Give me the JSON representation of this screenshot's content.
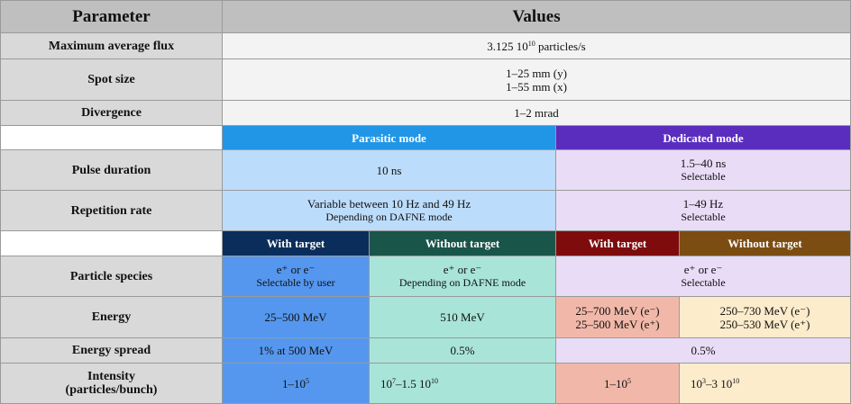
{
  "header": {
    "parameter": "Parameter",
    "values": "Values"
  },
  "flux": {
    "label": "Maximum average flux",
    "value_base": "3.125 10",
    "value_exp": "10",
    "value_unit": " particles/s"
  },
  "spot": {
    "label": "Spot size",
    "y": "1–25 mm (y)",
    "x": "1–55 mm (x)"
  },
  "divergence": {
    "label": "Divergence",
    "value": "1–2 mrad"
  },
  "modes": {
    "parasitic": "Parasitic mode",
    "dedicated": "Dedicated mode"
  },
  "pulse": {
    "label": "Pulse duration",
    "parasitic": "10 ns",
    "dedicated": "1.5–40 ns",
    "dedicated_note": "Selectable"
  },
  "reprate": {
    "label": "Repetition rate",
    "parasitic": "Variable between 10 Hz and 49 Hz",
    "parasitic_note": "Depending on DAFNE mode",
    "dedicated": "1–49 Hz",
    "dedicated_note": "Selectable"
  },
  "sub": {
    "with_target": "With target",
    "without_target": "Without target"
  },
  "species": {
    "label": "Particle species",
    "par_with": "e⁺ or e⁻",
    "par_with_note": "Selectable by user",
    "par_without": "e⁺ or e⁻",
    "par_without_note": "Depending on DAFNE mode",
    "ded": "e⁺ or e⁻",
    "ded_note": "Selectable"
  },
  "energy": {
    "label": "Energy",
    "par_with": "25–500 MeV",
    "par_without": "510 MeV",
    "ded_with_1": "25–700 MeV (e⁻)",
    "ded_with_2": "25–500 MeV (e⁺)",
    "ded_without_1": "250–730 MeV (e⁻)",
    "ded_without_2": "250–530 MeV (e⁺)"
  },
  "spread": {
    "label": "Energy spread",
    "par_with": "1% at 500 MeV",
    "par_without": "0.5%",
    "ded": "0.5%"
  },
  "intensity": {
    "label_1": "Intensity",
    "label_2": "(particles/bunch)",
    "par_with_base": "1–10",
    "par_with_exp": "5",
    "par_without_a": "10",
    "par_without_a_exp": "7",
    "par_without_b": "–1.5 10",
    "par_without_b_exp": "10",
    "ded_with_base": "1–10",
    "ded_with_exp": "5",
    "ded_without_a": "10",
    "ded_without_a_exp": "3",
    "ded_without_b": "–3 10",
    "ded_without_b_exp": "10"
  }
}
